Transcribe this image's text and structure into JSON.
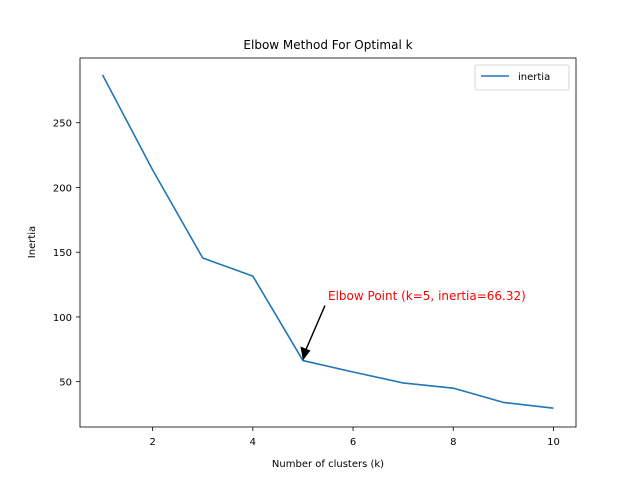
{
  "chart_data": {
    "type": "line",
    "title": "Elbow Method For Optimal k",
    "xlabel": "Number of clusters (k)",
    "ylabel": "Inertia",
    "x": [
      1,
      2,
      3,
      4,
      5,
      6,
      7,
      8,
      9,
      10
    ],
    "series": [
      {
        "name": "inertia",
        "color": "#1f77b4",
        "values": [
          287.0,
          213.5,
          145.5,
          131.5,
          66.32,
          57.5,
          49.0,
          45.0,
          34.0,
          29.5
        ]
      }
    ],
    "xlim": [
      0.55,
      10.45
    ],
    "ylim": [
      15.0,
      300.0
    ],
    "xticks": [
      2,
      4,
      6,
      8,
      10
    ],
    "yticks": [
      50,
      100,
      150,
      200,
      250
    ],
    "grid": false,
    "legend": {
      "placement": "top-right",
      "entries": [
        "inertia"
      ]
    },
    "annotation": {
      "text": "Elbow Point (k=5, inertia=66.32)",
      "point": [
        5,
        66.32
      ],
      "text_at": [
        5.5,
        116.0
      ],
      "color": "#ff0000"
    }
  }
}
